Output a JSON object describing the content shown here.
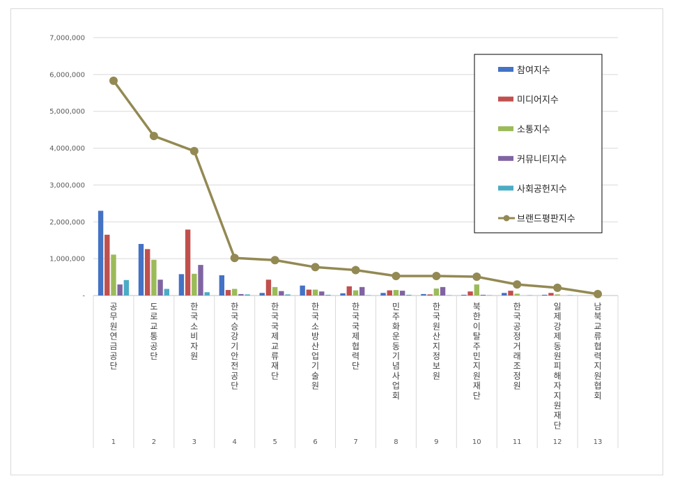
{
  "chart_data": {
    "type": "bar+line",
    "y_tick_labels": [
      "-",
      "1,000,000",
      "2,000,000",
      "3,000,000",
      "4,000,000",
      "5,000,000",
      "6,000,000",
      "7,000,000"
    ],
    "ylim": [
      0,
      7000000
    ],
    "grid": true,
    "legend_position": "top-right",
    "categories": [
      {
        "num": "1",
        "name": "공무원연금공단"
      },
      {
        "num": "2",
        "name": "도로교통공단"
      },
      {
        "num": "3",
        "name": "한국소비자원"
      },
      {
        "num": "4",
        "name": "한국승강기안전공단"
      },
      {
        "num": "5",
        "name": "한국국제교류재단"
      },
      {
        "num": "6",
        "name": "한국소방산업기술원"
      },
      {
        "num": "7",
        "name": "한국국제협력단"
      },
      {
        "num": "8",
        "name": "민주화운동기념사업회"
      },
      {
        "num": "9",
        "name": "한국원산지정보원"
      },
      {
        "num": "10",
        "name": "북한이탈주민지원재단"
      },
      {
        "num": "11",
        "name": "한국공정거래조정원"
      },
      {
        "num": "12",
        "name": "일제강제동원피해자지원재단"
      },
      {
        "num": "13",
        "name": "남북교류협력지원협회"
      }
    ],
    "series": [
      {
        "name": "참여지수",
        "kind": "bar",
        "color": "#4472C4",
        "values": [
          2300000,
          1400000,
          580000,
          550000,
          70000,
          270000,
          60000,
          70000,
          40000,
          20000,
          70000,
          20000,
          0
        ]
      },
      {
        "name": "미디어지수",
        "kind": "bar",
        "color": "#C0504D",
        "values": [
          1650000,
          1260000,
          1790000,
          150000,
          430000,
          160000,
          250000,
          140000,
          30000,
          110000,
          130000,
          70000,
          0
        ]
      },
      {
        "name": "소통지수",
        "kind": "bar",
        "color": "#9BBB59",
        "values": [
          1110000,
          970000,
          590000,
          180000,
          230000,
          160000,
          140000,
          150000,
          190000,
          300000,
          50000,
          30000,
          0
        ]
      },
      {
        "name": "커뮤니티지수",
        "kind": "bar",
        "color": "#8064A2",
        "values": [
          300000,
          430000,
          830000,
          40000,
          120000,
          110000,
          230000,
          130000,
          230000,
          20000,
          0,
          0,
          0
        ]
      },
      {
        "name": "사회공헌지수",
        "kind": "bar",
        "color": "#4BACC6",
        "values": [
          420000,
          180000,
          90000,
          30000,
          30000,
          20000,
          10000,
          20000,
          10000,
          10000,
          10000,
          10000,
          0
        ]
      },
      {
        "name": "브랜드평판지수",
        "kind": "line",
        "color": "#938953",
        "values": [
          5830000,
          4330000,
          3920000,
          1020000,
          960000,
          770000,
          690000,
          530000,
          530000,
          510000,
          300000,
          210000,
          40000
        ]
      }
    ]
  }
}
